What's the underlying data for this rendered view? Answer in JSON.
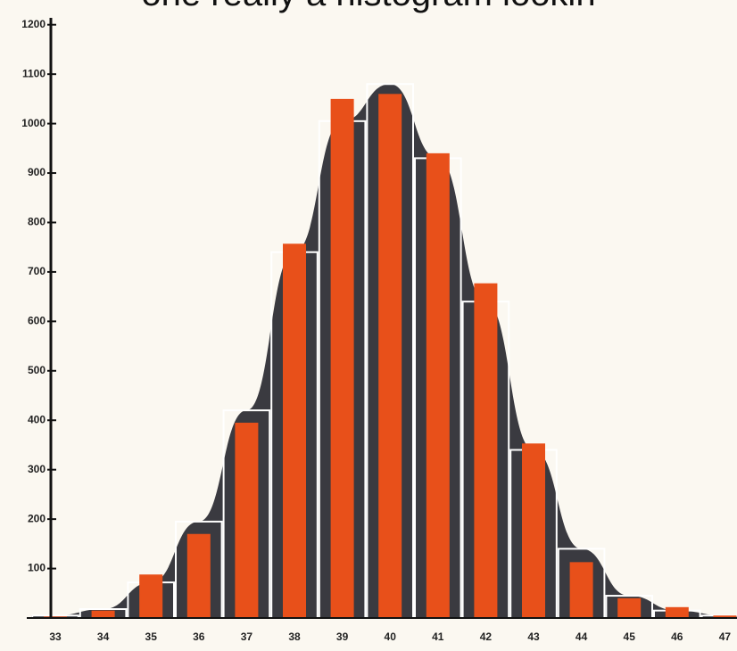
{
  "chart_data": {
    "type": "bar",
    "title": "one really a histogram lookin",
    "categories": [
      "33",
      "34",
      "35",
      "36",
      "37",
      "38",
      "39",
      "40",
      "41",
      "42",
      "43",
      "44",
      "45",
      "46",
      "47"
    ],
    "series": [
      {
        "color": "#ffffff",
        "values": [
          5,
          18,
          72,
          195,
          420,
          740,
          1005,
          1080,
          930,
          640,
          340,
          140,
          45,
          15,
          5
        ]
      },
      {
        "color": "#e8501a",
        "values": [
          3,
          15,
          88,
          170,
          395,
          757,
          1050,
          1060,
          940,
          677,
          353,
          113,
          40,
          22,
          5
        ]
      }
    ],
    "curve_color": "#3a3a40",
    "ylim": [
      0,
      1250
    ],
    "yticks": [
      100,
      200,
      300,
      400,
      500,
      600,
      700,
      800,
      900,
      1000,
      1100,
      1200
    ]
  }
}
